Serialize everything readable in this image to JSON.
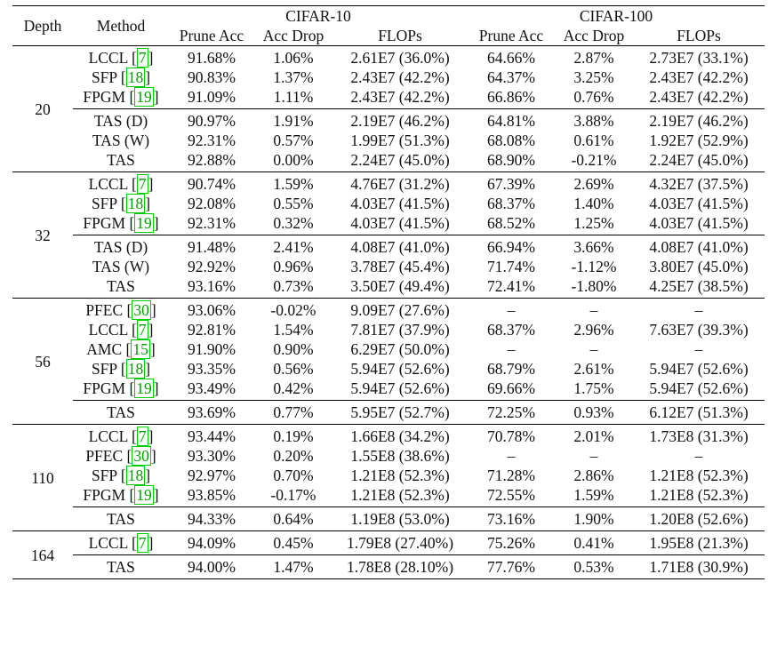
{
  "header": {
    "depth": "Depth",
    "method": "Method",
    "cifar10": "CIFAR-10",
    "cifar100": "CIFAR-100",
    "prune_acc": "Prune Acc",
    "acc_drop": "Acc Drop",
    "flops": "FLOPs"
  },
  "groups": [
    {
      "depth": "20",
      "baselines": [
        {
          "method": "LCCL",
          "cite": "7",
          "c10": [
            "91.68%",
            "1.06%",
            "2.61E7 (36.0%)"
          ],
          "c100": [
            "64.66%",
            "2.87%",
            "2.73E7 (33.1%)"
          ]
        },
        {
          "method": "SFP",
          "cite": "18",
          "c10": [
            "90.83%",
            "1.37%",
            "2.43E7 (42.2%)"
          ],
          "c100": [
            "64.37%",
            "3.25%",
            "2.43E7 (42.2%)"
          ]
        },
        {
          "method": "FPGM",
          "cite": "19",
          "c10": [
            "91.09%",
            "1.11%",
            "2.43E7 (42.2%)"
          ],
          "c100": [
            "66.86%",
            "0.76%",
            "2.43E7 (42.2%)"
          ]
        }
      ],
      "ours": [
        {
          "method": "TAS (D)",
          "c10": [
            "90.97%",
            "1.91%",
            "2.19E7 (46.2%)"
          ],
          "c100": [
            "64.81%",
            "3.88%",
            "2.19E7 (46.2%)"
          ]
        },
        {
          "method": "TAS (W)",
          "c10": [
            "92.31%",
            "0.57%",
            "1.99E7 (51.3%)"
          ],
          "c100": [
            "68.08%",
            "0.61%",
            "1.92E7 (52.9%)"
          ]
        },
        {
          "method": "TAS",
          "c10": [
            "92.88%",
            "0.00%",
            "2.24E7 (45.0%)"
          ],
          "c100": [
            "68.90%",
            "-0.21%",
            "2.24E7 (45.0%)"
          ]
        }
      ]
    },
    {
      "depth": "32",
      "baselines": [
        {
          "method": "LCCL",
          "cite": "7",
          "c10": [
            "90.74%",
            "1.59%",
            "4.76E7 (31.2%)"
          ],
          "c100": [
            "67.39%",
            "2.69%",
            "4.32E7 (37.5%)"
          ]
        },
        {
          "method": "SFP",
          "cite": "18",
          "c10": [
            "92.08%",
            "0.55%",
            "4.03E7 (41.5%)"
          ],
          "c100": [
            "68.37%",
            "1.40%",
            "4.03E7 (41.5%)"
          ]
        },
        {
          "method": "FPGM",
          "cite": "19",
          "c10": [
            "92.31%",
            "0.32%",
            "4.03E7 (41.5%)"
          ],
          "c100": [
            "68.52%",
            "1.25%",
            "4.03E7 (41.5%)"
          ]
        }
      ],
      "ours": [
        {
          "method": "TAS (D)",
          "c10": [
            "91.48%",
            "2.41%",
            "4.08E7 (41.0%)"
          ],
          "c100": [
            "66.94%",
            "3.66%",
            "4.08E7 (41.0%)"
          ]
        },
        {
          "method": "TAS (W)",
          "c10": [
            "92.92%",
            "0.96%",
            "3.78E7 (45.4%)"
          ],
          "c100": [
            "71.74%",
            "-1.12%",
            "3.80E7 (45.0%)"
          ]
        },
        {
          "method": "TAS",
          "c10": [
            "93.16%",
            "0.73%",
            "3.50E7 (49.4%)"
          ],
          "c100": [
            "72.41%",
            "-1.80%",
            "4.25E7 (38.5%)"
          ]
        }
      ]
    },
    {
      "depth": "56",
      "baselines": [
        {
          "method": "PFEC",
          "cite": "30",
          "c10": [
            "93.06%",
            "-0.02%",
            "9.09E7 (27.6%)"
          ],
          "c100": [
            "–",
            "–",
            "–"
          ]
        },
        {
          "method": "LCCL",
          "cite": "7",
          "c10": [
            "92.81%",
            "1.54%",
            "7.81E7 (37.9%)"
          ],
          "c100": [
            "68.37%",
            "2.96%",
            "7.63E7 (39.3%)"
          ]
        },
        {
          "method": "AMC",
          "cite": "15",
          "c10": [
            "91.90%",
            "0.90%",
            "6.29E7 (50.0%)"
          ],
          "c100": [
            "–",
            "–",
            "–"
          ]
        },
        {
          "method": "SFP",
          "cite": "18",
          "c10": [
            "93.35%",
            "0.56%",
            "5.94E7 (52.6%)"
          ],
          "c100": [
            "68.79%",
            "2.61%",
            "5.94E7 (52.6%)"
          ]
        },
        {
          "method": "FPGM",
          "cite": "19",
          "c10": [
            "93.49%",
            "0.42%",
            "5.94E7 (52.6%)"
          ],
          "c100": [
            "69.66%",
            "1.75%",
            "5.94E7 (52.6%)"
          ]
        }
      ],
      "ours": [
        {
          "method": "TAS",
          "c10": [
            "93.69%",
            "0.77%",
            "5.95E7 (52.7%)"
          ],
          "c100": [
            "72.25%",
            "0.93%",
            "6.12E7 (51.3%)"
          ]
        }
      ]
    },
    {
      "depth": "110",
      "baselines": [
        {
          "method": "LCCL",
          "cite": "7",
          "c10": [
            "93.44%",
            "0.19%",
            "1.66E8 (34.2%)"
          ],
          "c100": [
            "70.78%",
            "2.01%",
            "1.73E8 (31.3%)"
          ]
        },
        {
          "method": "PFEC",
          "cite": "30",
          "c10": [
            "93.30%",
            "0.20%",
            "1.55E8 (38.6%)"
          ],
          "c100": [
            "–",
            "–",
            "–"
          ]
        },
        {
          "method": "SFP",
          "cite": "18",
          "c10": [
            "92.97%",
            "0.70%",
            "1.21E8 (52.3%)"
          ],
          "c100": [
            "71.28%",
            "2.86%",
            "1.21E8 (52.3%)"
          ]
        },
        {
          "method": "FPGM",
          "cite": "19",
          "c10": [
            "93.85%",
            "-0.17%",
            "1.21E8 (52.3%)"
          ],
          "c100": [
            "72.55%",
            "1.59%",
            "1.21E8 (52.3%)"
          ]
        }
      ],
      "ours": [
        {
          "method": "TAS",
          "c10": [
            "94.33%",
            "0.64%",
            "1.19E8 (53.0%)"
          ],
          "c100": [
            "73.16%",
            "1.90%",
            "1.20E8 (52.6%)"
          ]
        }
      ]
    },
    {
      "depth": "164",
      "baselines": [
        {
          "method": "LCCL",
          "cite": "7",
          "c10": [
            "94.09%",
            "0.45%",
            "1.79E8 (27.40%)"
          ],
          "c100": [
            "75.26%",
            "0.41%",
            "1.95E8 (21.3%)"
          ]
        }
      ],
      "ours": [
        {
          "method": "TAS",
          "c10": [
            "94.00%",
            "1.47%",
            "1.78E8 (28.10%)"
          ],
          "c100": [
            "77.76%",
            "0.53%",
            "1.71E8 (30.9%)"
          ]
        }
      ]
    }
  ]
}
